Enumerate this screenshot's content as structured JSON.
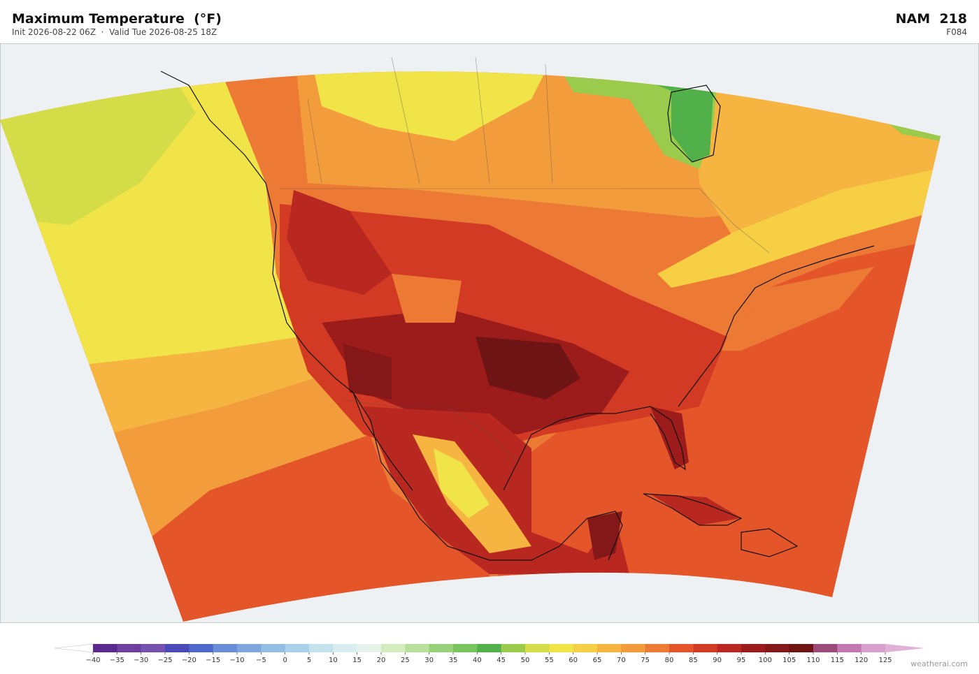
{
  "header": {
    "title": "Maximum Temperature  (°F)",
    "subtitle": "Init 2026-08-22 06Z  ·  Valid Tue 2026-08-25 18Z",
    "model": "NAM  218",
    "forecast_hour": "F084"
  },
  "colorbar": {
    "ticks": [
      {
        "value": -40,
        "label": "−40"
      },
      {
        "value": -35,
        "label": "−35"
      },
      {
        "value": -30,
        "label": "−30"
      },
      {
        "value": -25,
        "label": "−25"
      },
      {
        "value": -20,
        "label": "−20"
      },
      {
        "value": -15,
        "label": "−15"
      },
      {
        "value": -10,
        "label": "−10"
      },
      {
        "value": -5,
        "label": "−5"
      },
      0,
      5,
      10,
      15,
      20,
      25,
      30,
      35,
      40,
      45,
      50,
      55,
      60,
      65,
      70,
      75,
      80,
      85,
      90,
      95,
      100,
      105,
      110,
      115,
      120,
      125
    ],
    "colors": [
      "#5b2a8c",
      "#6e3fa0",
      "#7552b0",
      "#4a4ab8",
      "#5068c8",
      "#6a8ed8",
      "#7fa6dc",
      "#93bde3",
      "#a9d2ea",
      "#c2e2ee",
      "#d8eef0",
      "#e6f3ea",
      "#d2ecc0",
      "#b8e09a",
      "#98d07a",
      "#78c45e",
      "#52b04a",
      "#9acb4c",
      "#d4dc48",
      "#f0e448",
      "#f6cf45",
      "#f5b540",
      "#f29c3c",
      "#ec7a35",
      "#e4552a",
      "#d23a24",
      "#b82820",
      "#9c1c1c",
      "#841818",
      "#6e1414",
      "#9c4a7a",
      "#c478b0",
      "#d8a0cc"
    ],
    "under_color": "#ffffff",
    "over_color": "#e0b0d8"
  },
  "footer": {
    "watermark": "weatherai.com"
  }
}
